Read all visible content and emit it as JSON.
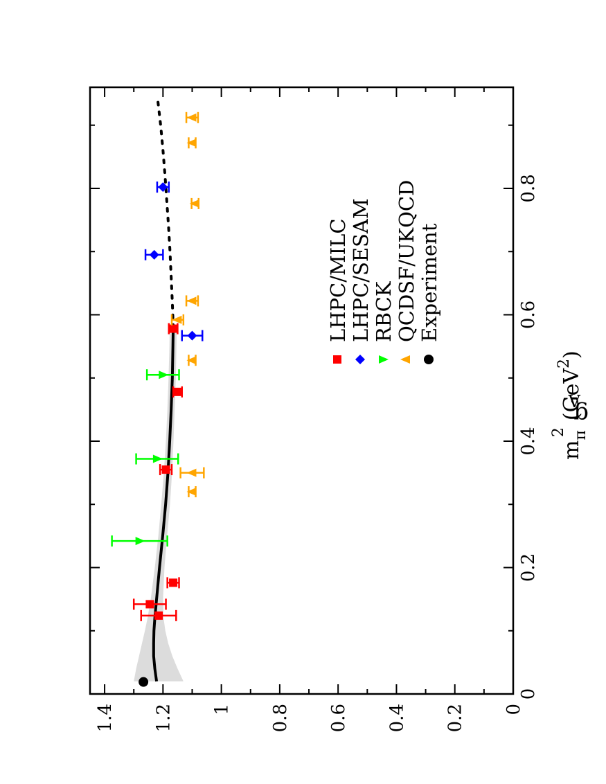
{
  "chart_data": {
    "type": "scatter",
    "orientation": "rotated 90 degrees counter-clockwise (x axis runs bottom-to-top, y axis runs right-to-left)",
    "xlabel": "m_π^2 (GeV^2)",
    "xlabel_parts": {
      "base": "m",
      "sub": "π",
      "sup1": "2",
      "unit": "(GeV",
      "sup2": "2",
      "close": ")"
    },
    "ylabel": "g_A",
    "ylabel_parts": {
      "base": "g",
      "sub": "A"
    },
    "xlim": [
      0,
      0.96
    ],
    "ylim": [
      0,
      1.45
    ],
    "xticks": [
      {
        "value": 0,
        "label": "0"
      },
      {
        "value": 0.2,
        "label": "0.2"
      },
      {
        "value": 0.4,
        "label": "0.4"
      },
      {
        "value": 0.6,
        "label": "0.6"
      },
      {
        "value": 0.8,
        "label": "0.8"
      }
    ],
    "xminor": [
      0.1,
      0.3,
      0.5,
      0.7,
      0.9
    ],
    "yticks": [
      {
        "value": 0,
        "label": "0"
      },
      {
        "value": 0.2,
        "label": "0.2"
      },
      {
        "value": 0.4,
        "label": "0.4"
      },
      {
        "value": 0.6,
        "label": "0.6"
      },
      {
        "value": 0.8,
        "label": "0.8"
      },
      {
        "value": 1.0,
        "label": "1"
      },
      {
        "value": 1.2,
        "label": "1.2"
      },
      {
        "value": 1.4,
        "label": "1.4"
      }
    ],
    "yminor": [
      0.1,
      0.3,
      0.5,
      0.7,
      0.9,
      1.1,
      1.3
    ],
    "grid": false,
    "legend_position": "right side, middle (rotated)",
    "series": [
      {
        "name": "LHPC/MILC",
        "color": "#ff0000",
        "marker": "square",
        "points": [
          {
            "x": 0.142,
            "y": 1.245,
            "err": 0.055
          },
          {
            "x": 0.124,
            "y": 1.215,
            "err": 0.06
          },
          {
            "x": 0.176,
            "y": 1.165,
            "err": 0.02
          },
          {
            "x": 0.355,
            "y": 1.19,
            "err": 0.02
          },
          {
            "x": 0.478,
            "y": 1.15,
            "err": 0.015
          },
          {
            "x": 0.578,
            "y": 1.165,
            "err": 0.015
          }
        ]
      },
      {
        "name": "LHPC/SESAM",
        "color": "#0000ff",
        "marker": "diamond",
        "points": [
          {
            "x": 0.567,
            "y": 1.1,
            "err": 0.035
          },
          {
            "x": 0.695,
            "y": 1.23,
            "err": 0.03
          },
          {
            "x": 0.802,
            "y": 1.2,
            "err": 0.02
          }
        ]
      },
      {
        "name": "RBCK",
        "color": "#00ff00",
        "marker": "triangle-right",
        "points": [
          {
            "x": 0.242,
            "y": 1.28,
            "err": 0.095
          },
          {
            "x": 0.372,
            "y": 1.22,
            "err": 0.072
          },
          {
            "x": 0.505,
            "y": 1.2,
            "err": 0.055
          }
        ]
      },
      {
        "name": "QCDSF/UKQCD",
        "color": "#ffa500",
        "marker": "triangle-left",
        "points": [
          {
            "x": 0.32,
            "y": 1.1,
            "err": 0.012
          },
          {
            "x": 0.35,
            "y": 1.1,
            "err": 0.04
          },
          {
            "x": 0.528,
            "y": 1.1,
            "err": 0.012
          },
          {
            "x": 0.592,
            "y": 1.15,
            "err": 0.02
          },
          {
            "x": 0.622,
            "y": 1.1,
            "err": 0.02
          },
          {
            "x": 0.776,
            "y": 1.09,
            "err": 0.012
          },
          {
            "x": 0.872,
            "y": 1.1,
            "err": 0.012
          },
          {
            "x": 0.912,
            "y": 1.1,
            "err": 0.02
          }
        ]
      },
      {
        "name": "Experiment",
        "color": "#000000",
        "marker": "circle",
        "points": [
          {
            "x": 0.019,
            "y": 1.267,
            "err": 0
          }
        ]
      }
    ],
    "fit_curve": {
      "x": [
        0.02,
        0.04,
        0.06,
        0.08,
        0.1,
        0.12,
        0.15,
        0.2,
        0.25,
        0.3,
        0.35,
        0.4,
        0.45,
        0.5,
        0.55,
        0.58
      ],
      "y": [
        1.222,
        1.228,
        1.232,
        1.232,
        1.231,
        1.228,
        1.222,
        1.212,
        1.201,
        1.191,
        1.183,
        1.177,
        1.172,
        1.168,
        1.166,
        1.165
      ],
      "band_upper": [
        1.3,
        1.292,
        1.282,
        1.272,
        1.262,
        1.253,
        1.242,
        1.228,
        1.216,
        1.206,
        1.197,
        1.19,
        1.185,
        1.181,
        1.178,
        1.177
      ],
      "band_lower": [
        1.13,
        1.15,
        1.168,
        1.182,
        1.192,
        1.198,
        1.2,
        1.195,
        1.186,
        1.176,
        1.169,
        1.164,
        1.16,
        1.156,
        1.154,
        1.153
      ]
    },
    "extrapolation_curve": {
      "x": [
        0.58,
        0.62,
        0.66,
        0.7,
        0.74,
        0.78,
        0.82,
        0.86,
        0.9,
        0.94
      ],
      "y": [
        1.165,
        1.168,
        1.172,
        1.176,
        1.181,
        1.187,
        1.193,
        1.2,
        1.208,
        1.218
      ]
    }
  }
}
